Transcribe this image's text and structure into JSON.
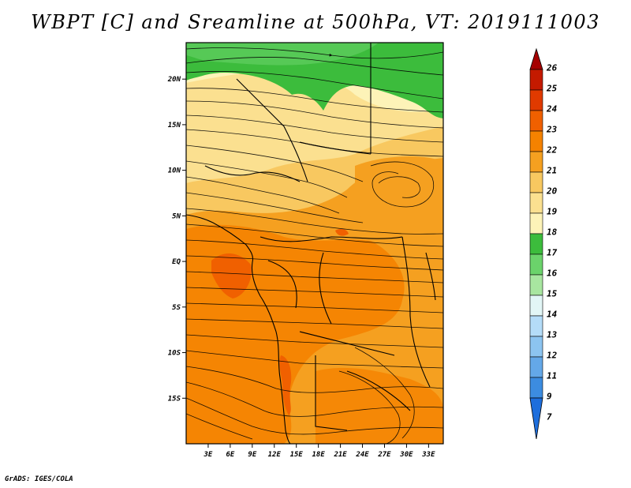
{
  "title": "WBPT [C] and Sreamline at 500hPa, VT: 2019111003",
  "credit": "GrADS: IGES/COLA",
  "map": {
    "lat_range": [
      -20,
      24
    ],
    "lon_range": [
      0,
      35
    ],
    "lat_ticks": [
      {
        "value": 20,
        "label": "20N"
      },
      {
        "value": 15,
        "label": "15N"
      },
      {
        "value": 10,
        "label": "10N"
      },
      {
        "value": 5,
        "label": "5N"
      },
      {
        "value": 0,
        "label": "EQ"
      },
      {
        "value": -5,
        "label": "5S"
      },
      {
        "value": -10,
        "label": "10S"
      },
      {
        "value": -15,
        "label": "15S"
      }
    ],
    "lon_ticks": [
      {
        "value": 3,
        "label": "3E"
      },
      {
        "value": 6,
        "label": "6E"
      },
      {
        "value": 9,
        "label": "9E"
      },
      {
        "value": 12,
        "label": "12E"
      },
      {
        "value": 15,
        "label": "15E"
      },
      {
        "value": 18,
        "label": "18E"
      },
      {
        "value": 21,
        "label": "21E"
      },
      {
        "value": 24,
        "label": "24E"
      },
      {
        "value": 27,
        "label": "27E"
      },
      {
        "value": 30,
        "label": "30E"
      },
      {
        "value": 33,
        "label": "33E"
      }
    ]
  },
  "colorbar": {
    "labels": [
      "26",
      "25",
      "24",
      "23",
      "22",
      "21",
      "20",
      "19",
      "18",
      "17",
      "16",
      "15",
      "14",
      "13",
      "12",
      "11",
      "9",
      "7"
    ],
    "colors": [
      "#a50000",
      "#c41a00",
      "#e03a00",
      "#f06000",
      "#f58200",
      "#f5a020",
      "#f8c860",
      "#fbe090",
      "#fdf3b8",
      "#3cbc3c",
      "#6bd36b",
      "#a8e6a0",
      "#e2f6f6",
      "#b4dcf8",
      "#8cc4f0",
      "#64a8e8",
      "#3c8ce0",
      "#1e6edc"
    ]
  },
  "wbpt_field": {
    "description_levels": "filled contours of wet-bulb potential temperature",
    "regions": [
      {
        "level": 17,
        "color": "#3cbc3c"
      },
      {
        "level": 18,
        "color": "#fdf3b8"
      },
      {
        "level": 19,
        "color": "#fbe090"
      },
      {
        "level": 20,
        "color": "#f8c860"
      },
      {
        "level": 21,
        "color": "#f5a020"
      },
      {
        "level": 22,
        "color": "#f58200"
      },
      {
        "level": 23,
        "color": "#f06000"
      }
    ]
  }
}
